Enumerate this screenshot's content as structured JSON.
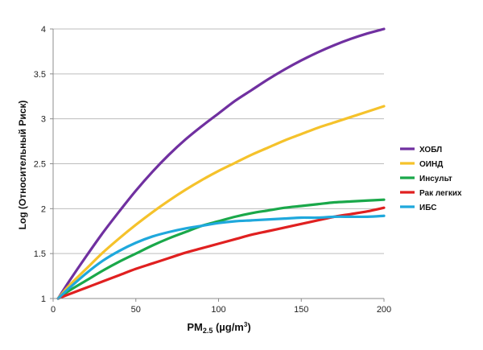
{
  "chart_data": {
    "type": "line",
    "title": "",
    "xlabel": {
      "main": "PM",
      "sub": "2.5",
      "unit": " (µg/m",
      "sup": "3",
      "close": ")"
    },
    "ylabel": "Log (Относительный Риск)",
    "xlim": [
      0,
      200
    ],
    "ylim": [
      1,
      4
    ],
    "x_ticks": [
      "0",
      "50",
      "100",
      "150",
      "200"
    ],
    "y_ticks": [
      "1",
      "1.5",
      "2",
      "2.5",
      "3",
      "3.5",
      "4"
    ],
    "grid": "horizontal",
    "legend_position": "right",
    "x": [
      3,
      10,
      20,
      30,
      40,
      50,
      60,
      70,
      80,
      90,
      100,
      110,
      120,
      130,
      140,
      150,
      160,
      170,
      180,
      190,
      200
    ],
    "series": [
      {
        "name": "ХОБЛ",
        "color": "#7030a0",
        "values": [
          1.0,
          1.2,
          1.47,
          1.73,
          1.97,
          2.2,
          2.41,
          2.6,
          2.77,
          2.92,
          3.06,
          3.2,
          3.32,
          3.44,
          3.55,
          3.65,
          3.74,
          3.82,
          3.89,
          3.95,
          4.0
        ]
      },
      {
        "name": "ОИНД",
        "color": "#f5c22b",
        "values": [
          1.0,
          1.15,
          1.33,
          1.51,
          1.67,
          1.82,
          1.96,
          2.09,
          2.21,
          2.32,
          2.42,
          2.51,
          2.6,
          2.68,
          2.76,
          2.83,
          2.9,
          2.96,
          3.02,
          3.08,
          3.14
        ]
      },
      {
        "name": "Инсульт",
        "color": "#1aa84a",
        "values": [
          1.0,
          1.09,
          1.2,
          1.31,
          1.41,
          1.5,
          1.59,
          1.67,
          1.74,
          1.81,
          1.86,
          1.91,
          1.95,
          1.98,
          2.01,
          2.03,
          2.05,
          2.07,
          2.08,
          2.09,
          2.1
        ]
      },
      {
        "name": "Рак легких",
        "color": "#e02020",
        "values": [
          1.0,
          1.05,
          1.12,
          1.19,
          1.26,
          1.33,
          1.39,
          1.45,
          1.51,
          1.56,
          1.61,
          1.66,
          1.71,
          1.75,
          1.79,
          1.83,
          1.87,
          1.91,
          1.94,
          1.97,
          2.01
        ]
      },
      {
        "name": "ИБС",
        "color": "#1fa8dc",
        "values": [
          1.0,
          1.12,
          1.28,
          1.42,
          1.53,
          1.62,
          1.69,
          1.74,
          1.78,
          1.81,
          1.84,
          1.86,
          1.87,
          1.88,
          1.89,
          1.9,
          1.9,
          1.91,
          1.91,
          1.91,
          1.92
        ]
      }
    ]
  }
}
